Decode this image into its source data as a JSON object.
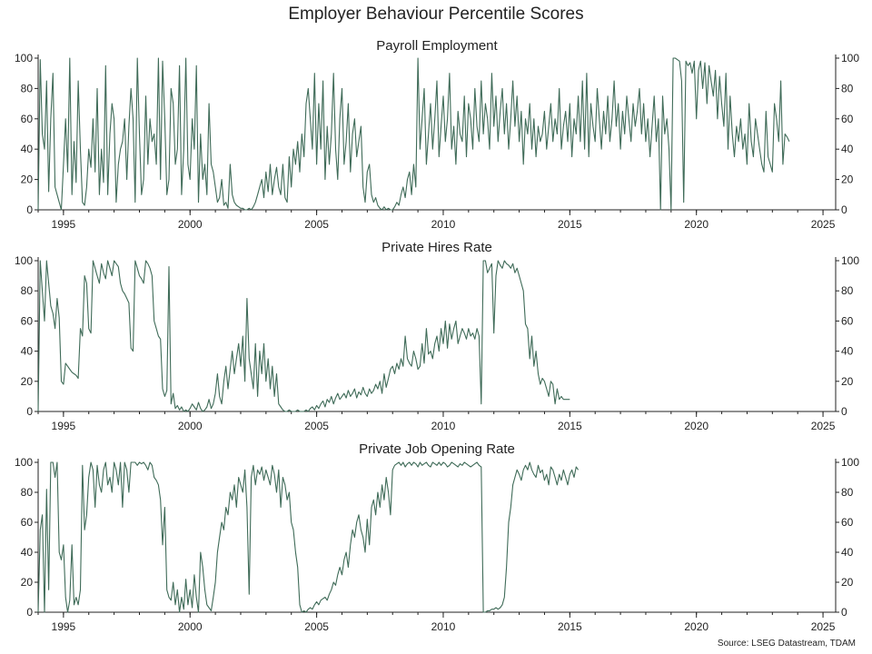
{
  "title": "Employer Behaviour Percentile Scores",
  "source": "Source: LSEG Datastream, TDAM",
  "chart_data": [
    {
      "type": "line",
      "title": "Payroll Employment",
      "xlim": [
        1994.0,
        2025.5
      ],
      "ylim": [
        0,
        100
      ],
      "x_ticks": [
        1995,
        2000,
        2005,
        2010,
        2015,
        2020,
        2025
      ],
      "y_ticks": [
        0,
        20,
        40,
        60,
        80,
        100
      ],
      "grid": false,
      "series_color": "#3f6b58",
      "series": [
        {
          "x_start": 1994.0,
          "x_step": 0.08333,
          "values": [
            0,
            99,
            50,
            40,
            85,
            12,
            60,
            90,
            15,
            10,
            5,
            0,
            30,
            60,
            25,
            100,
            10,
            45,
            18,
            85,
            40,
            5,
            3,
            15,
            40,
            28,
            60,
            25,
            80,
            10,
            40,
            18,
            95,
            10,
            50,
            70,
            60,
            5,
            30,
            40,
            45,
            60,
            20,
            55,
            80,
            60,
            5,
            100,
            50,
            10,
            20,
            75,
            30,
            60,
            45,
            50,
            30,
            100,
            20,
            98,
            60,
            10,
            20,
            80,
            70,
            30,
            40,
            95,
            10,
            40,
            100,
            30,
            20,
            60,
            40,
            95,
            5,
            50,
            20,
            30,
            10,
            70,
            30,
            25,
            15,
            5,
            8,
            20,
            3,
            5,
            1,
            30,
            10,
            5,
            3,
            2,
            1,
            1,
            0,
            0,
            1,
            0,
            2,
            5,
            10,
            15,
            20,
            8,
            25,
            12,
            30,
            10,
            20,
            28,
            15,
            10,
            30,
            8,
            5,
            35,
            15,
            40,
            30,
            45,
            25,
            50,
            35,
            70,
            80,
            60,
            40,
            90,
            30,
            70,
            40,
            85,
            20,
            55,
            30,
            50,
            90,
            40,
            20,
            60,
            80,
            30,
            45,
            70,
            25,
            50,
            60,
            35,
            45,
            55,
            15,
            5,
            25,
            30,
            10,
            5,
            8,
            3,
            1,
            0,
            2,
            0,
            1,
            0,
            0,
            2,
            5,
            3,
            10,
            15,
            8,
            20,
            25,
            10,
            30,
            15,
            100,
            40,
            60,
            80,
            30,
            50,
            70,
            40,
            60,
            85,
            35,
            55,
            75,
            45,
            60,
            90,
            40,
            55,
            30,
            65,
            50,
            45,
            75,
            35,
            70,
            60,
            40,
            80,
            55,
            45,
            85,
            50,
            70,
            60,
            40,
            90,
            55,
            75,
            45,
            65,
            80,
            50,
            70,
            40,
            60,
            85,
            55,
            75,
            45,
            65,
            30,
            60,
            50,
            70,
            40,
            60,
            35,
            55,
            45,
            50,
            65,
            40,
            55,
            70,
            45,
            60,
            50,
            80,
            40,
            55,
            65,
            45,
            70,
            35,
            60,
            50,
            75,
            45,
            85,
            40,
            90,
            35,
            70,
            55,
            45,
            80,
            60,
            40,
            65,
            50,
            75,
            45,
            60,
            85,
            55,
            70,
            40,
            65,
            50,
            75,
            60,
            45,
            70,
            55,
            65,
            80,
            50,
            70,
            45,
            60,
            35,
            55,
            75,
            45,
            60,
            0,
            75,
            50,
            60,
            40,
            0,
            100,
            100,
            99,
            98,
            85,
            5,
            98,
            95,
            97,
            90,
            98,
            60,
            92,
            98,
            80,
            97,
            70,
            95,
            85,
            75,
            92,
            60,
            88,
            70,
            55,
            90,
            40,
            75,
            50,
            35,
            55,
            45,
            60,
            40,
            50,
            30,
            70,
            45,
            35,
            60,
            50,
            40,
            30,
            25,
            65,
            35,
            30,
            25,
            70,
            60,
            45,
            85,
            30,
            50,
            48,
            45
          ]
        }
      ]
    },
    {
      "type": "line",
      "title": "Private Hires Rate",
      "xlim": [
        1994.0,
        2025.5
      ],
      "ylim": [
        0,
        100
      ],
      "x_ticks": [
        1995,
        2000,
        2005,
        2010,
        2015,
        2020,
        2025
      ],
      "y_ticks": [
        0,
        20,
        40,
        60,
        80,
        100
      ],
      "grid": false,
      "series_color": "#3f6b58",
      "series": [
        {
          "x_start": 1994.0,
          "x_step": 0.08333,
          "values": [
            0,
            100,
            80,
            60,
            100,
            85,
            70,
            65,
            55,
            75,
            62,
            20,
            18,
            32,
            30,
            28,
            26,
            25,
            24,
            22,
            55,
            50,
            90,
            85,
            55,
            52,
            100,
            95,
            90,
            85,
            98,
            92,
            88,
            100,
            95,
            90,
            100,
            98,
            96,
            85,
            80,
            78,
            75,
            72,
            42,
            40,
            100,
            95,
            90,
            88,
            85,
            100,
            98,
            95,
            90,
            60,
            55,
            50,
            48,
            15,
            10,
            14,
            96,
            5,
            12,
            2,
            4,
            1,
            3,
            0,
            1,
            0,
            2,
            5,
            3,
            1,
            6,
            2,
            0,
            1,
            3,
            8,
            2,
            5,
            12,
            25,
            10,
            5,
            20,
            30,
            15,
            28,
            40,
            25,
            35,
            45,
            30,
            50,
            20,
            75,
            35,
            25,
            15,
            45,
            10,
            40,
            25,
            45,
            20,
            35,
            15,
            30,
            10,
            25,
            5,
            3,
            1,
            0,
            0,
            1,
            0,
            0,
            0,
            1,
            0,
            0,
            0,
            1,
            0,
            2,
            3,
            1,
            4,
            2,
            5,
            7,
            3,
            8,
            6,
            10,
            5,
            9,
            12,
            8,
            10,
            12,
            9,
            14,
            10,
            12,
            15,
            9,
            13,
            11,
            16,
            12,
            10,
            15,
            12,
            14,
            18,
            15,
            20,
            12,
            25,
            16,
            22,
            28,
            30,
            25,
            32,
            28,
            35,
            30,
            50,
            35,
            32,
            30,
            40,
            35,
            28,
            30,
            45,
            32,
            55,
            38,
            40,
            35,
            45,
            50,
            40,
            55,
            45,
            60,
            42,
            58,
            48,
            55,
            60,
            45,
            50,
            55,
            52,
            48,
            55,
            50,
            52,
            48,
            55,
            50,
            5,
            100,
            100,
            92,
            95,
            98,
            52,
            90,
            100,
            97,
            95,
            100,
            98,
            97,
            95,
            98,
            92,
            95,
            90,
            85,
            80,
            58,
            55,
            35,
            50,
            30,
            40,
            25,
            18,
            22,
            20,
            15,
            10,
            20,
            18,
            5,
            15,
            8,
            10,
            8,
            8,
            8,
            8
          ]
        }
      ]
    },
    {
      "type": "line",
      "title": "Private Job Opening Rate",
      "xlim": [
        1994.0,
        2025.5
      ],
      "ylim": [
        0,
        100
      ],
      "x_ticks": [
        1995,
        2000,
        2005,
        2010,
        2015,
        2020,
        2025
      ],
      "y_ticks": [
        0,
        20,
        40,
        60,
        80,
        100
      ],
      "grid": false,
      "series_color": "#3f6b58",
      "series": [
        {
          "x_start": 1994.0,
          "x_step": 0.08333,
          "values": [
            0,
            55,
            65,
            0,
            82,
            15,
            100,
            100,
            90,
            100,
            40,
            35,
            45,
            10,
            0,
            8,
            45,
            5,
            10,
            5,
            15,
            98,
            55,
            65,
            90,
            100,
            95,
            70,
            98,
            85,
            80,
            95,
            100,
            85,
            90,
            80,
            100,
            95,
            85,
            100,
            70,
            100,
            95,
            80,
            100,
            100,
            100,
            98,
            100,
            99,
            100,
            98,
            95,
            100,
            98,
            90,
            88,
            85,
            75,
            45,
            70,
            15,
            10,
            8,
            20,
            5,
            15,
            0,
            10,
            2,
            22,
            5,
            15,
            3,
            25,
            10,
            0,
            40,
            30,
            15,
            5,
            3,
            1,
            10,
            20,
            40,
            50,
            60,
            55,
            70,
            65,
            80,
            75,
            85,
            70,
            90,
            85,
            80,
            95,
            70,
            12,
            90,
            98,
            85,
            95,
            92,
            97,
            88,
            95,
            90,
            85,
            98,
            92,
            80,
            95,
            70,
            90,
            85,
            75,
            80,
            60,
            55,
            40,
            30,
            5,
            0,
            1,
            0,
            2,
            3,
            2,
            5,
            7,
            5,
            8,
            9,
            10,
            8,
            12,
            15,
            20,
            18,
            25,
            30,
            25,
            35,
            40,
            30,
            45,
            55,
            50,
            60,
            65,
            55,
            50,
            40,
            62,
            45,
            70,
            75,
            65,
            80,
            70,
            85,
            75,
            90,
            80,
            65,
            95,
            98,
            99,
            100,
            98,
            100,
            97,
            99,
            100,
            98,
            100,
            99,
            97,
            100,
            98,
            99,
            100,
            98,
            97,
            100,
            99,
            98,
            100,
            98,
            100,
            99,
            97,
            98,
            100,
            99,
            98,
            97,
            99,
            98,
            100,
            99,
            98,
            97,
            98,
            99,
            100,
            98,
            97,
            0,
            0,
            1,
            1,
            2,
            2,
            3,
            2,
            3,
            5,
            10,
            30,
            60,
            70,
            85,
            90,
            95,
            92,
            88,
            95,
            98,
            95,
            100,
            95,
            92,
            90,
            98,
            93,
            95,
            88,
            92,
            85,
            97,
            95,
            90,
            85,
            92,
            88,
            95,
            90,
            85,
            92,
            95,
            90,
            97,
            95
          ]
        }
      ]
    }
  ]
}
